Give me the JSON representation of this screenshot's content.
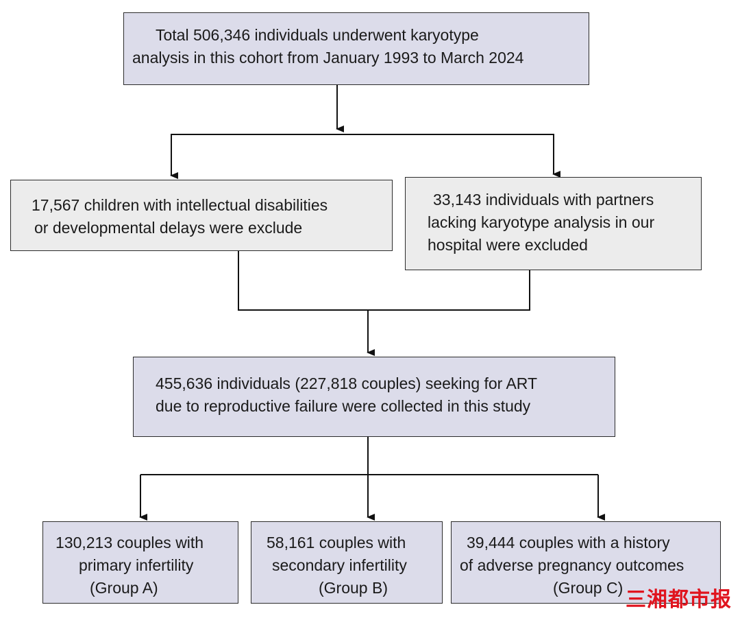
{
  "flowchart": {
    "total": {
      "lines": [
        "Total 506,346 individuals underwent karyotype",
        "analysis in this cohort from January 1993 to March 2024"
      ]
    },
    "excluded_children": {
      "lines": [
        "17,567 children with intellectual disabilities",
        "or developmental delays were exclude"
      ]
    },
    "excluded_partners": {
      "lines": [
        "33,143 individuals with partners",
        "lacking karyotype analysis in our",
        "hospital were excluded"
      ]
    },
    "study_cohort": {
      "lines": [
        "455,636 individuals (227,818 couples) seeking for ART",
        "due to reproductive failure were collected in this study"
      ]
    },
    "group_a": {
      "lines": [
        "130,213 couples with",
        "primary infertility",
        "(Group A)"
      ]
    },
    "group_b": {
      "lines": [
        "58,161 couples with",
        "secondary infertility",
        "(Group B)"
      ]
    },
    "group_c": {
      "lines": [
        "39,444 couples with a history",
        "of adverse pregnancy outcomes",
        "(Group C)"
      ]
    }
  },
  "watermark": {
    "text": "三湘都市报"
  },
  "colors": {
    "main_box_fill": "#dcdcea",
    "excluded_box_fill": "#ececec",
    "watermark": "#e0141e"
  }
}
